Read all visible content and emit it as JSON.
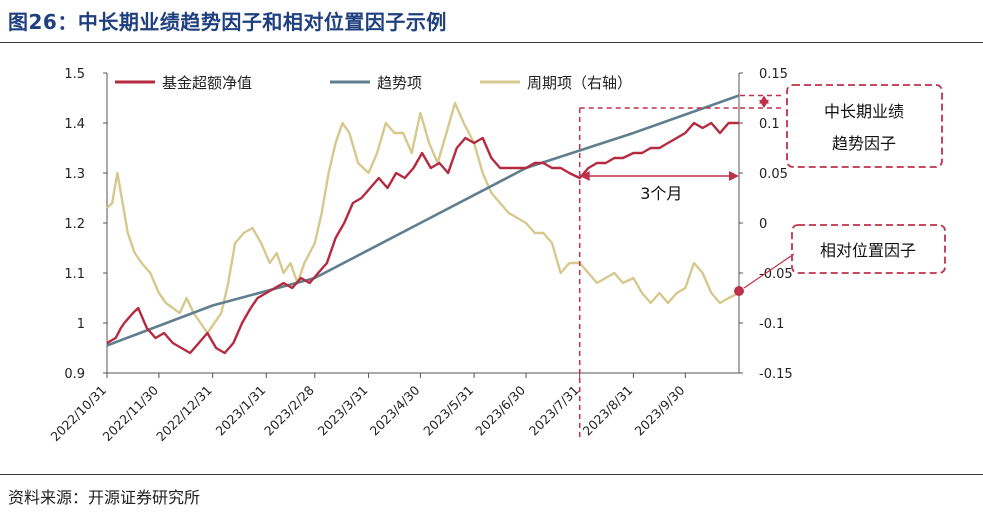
{
  "title": "图26：中长期业绩趋势因子和相对位置因子示例",
  "source": "资料来源：开源证券研究所",
  "colors": {
    "excess": "#B52A40",
    "trend": "#5F7F8F",
    "cycle": "#D7C88E",
    "accent": "#C0304A",
    "title": "#1F3F7F"
  },
  "chart_data": {
    "type": "line",
    "x_labels": [
      "2022/10/31",
      "2022/11/30",
      "2022/12/31",
      "2023/1/31",
      "2023/2/28",
      "2023/3/31",
      "2023/4/30",
      "2023/5/31",
      "2023/6/30",
      "2023/7/31",
      "2023/8/31",
      "2023/9/30"
    ],
    "x_range": [
      "2022/10/31",
      "2023/10/31"
    ],
    "y_left_ticks": [
      "0.9",
      "1",
      "1.1",
      "1.2",
      "1.3",
      "1.4",
      "1.5"
    ],
    "y_left_range": [
      0.9,
      1.5
    ],
    "y_right_ticks": [
      "-0.15",
      "-0.1",
      "-0.05",
      "0",
      "0.05",
      "0.1",
      "0.15"
    ],
    "y_right_range": [
      -0.15,
      0.15
    ],
    "legend": [
      "基金超额净值",
      "趋势项",
      "周期项（右轴）"
    ],
    "series": [
      {
        "name": "基金超额净值",
        "axis": "left",
        "points": [
          [
            "2022/10/31",
            0.96
          ],
          [
            "2022/11/5",
            0.97
          ],
          [
            "2022/11/8",
            0.99
          ],
          [
            "2022/11/10",
            1.0
          ],
          [
            "2022/11/15",
            1.02
          ],
          [
            "2022/11/18",
            1.03
          ],
          [
            "2022/11/23",
            0.99
          ],
          [
            "2022/11/28",
            0.97
          ],
          [
            "2022/12/3",
            0.98
          ],
          [
            "2022/12/8",
            0.96
          ],
          [
            "2022/12/13",
            0.95
          ],
          [
            "2022/12/18",
            0.94
          ],
          [
            "2022/12/23",
            0.96
          ],
          [
            "2022/12/28",
            0.98
          ],
          [
            "2023/1/2",
            0.95
          ],
          [
            "2023/1/7",
            0.94
          ],
          [
            "2023/1/12",
            0.96
          ],
          [
            "2023/1/17",
            1.0
          ],
          [
            "2023/1/22",
            1.03
          ],
          [
            "2023/1/26",
            1.05
          ],
          [
            "2023/1/31",
            1.06
          ],
          [
            "2023/2/5",
            1.07
          ],
          [
            "2023/2/10",
            1.08
          ],
          [
            "2023/2/15",
            1.07
          ],
          [
            "2023/2/20",
            1.09
          ],
          [
            "2023/2/25",
            1.08
          ],
          [
            "2023/3/2",
            1.1
          ],
          [
            "2023/3/7",
            1.12
          ],
          [
            "2023/3/12",
            1.17
          ],
          [
            "2023/3/17",
            1.2
          ],
          [
            "2023/3/22",
            1.24
          ],
          [
            "2023/3/27",
            1.25
          ],
          [
            "2023/4/1",
            1.27
          ],
          [
            "2023/4/6",
            1.29
          ],
          [
            "2023/4/11",
            1.27
          ],
          [
            "2023/4/16",
            1.3
          ],
          [
            "2023/4/21",
            1.29
          ],
          [
            "2023/4/26",
            1.31
          ],
          [
            "2023/5/1",
            1.34
          ],
          [
            "2023/5/6",
            1.31
          ],
          [
            "2023/5/11",
            1.32
          ],
          [
            "2023/5/16",
            1.3
          ],
          [
            "2023/5/21",
            1.35
          ],
          [
            "2023/5/26",
            1.37
          ],
          [
            "2023/5/31",
            1.36
          ],
          [
            "2023/6/5",
            1.37
          ],
          [
            "2023/6/10",
            1.33
          ],
          [
            "2023/6/15",
            1.31
          ],
          [
            "2023/6/20",
            1.31
          ],
          [
            "2023/6/25",
            1.31
          ],
          [
            "2023/6/30",
            1.31
          ],
          [
            "2023/7/5",
            1.32
          ],
          [
            "2023/7/10",
            1.32
          ],
          [
            "2023/7/15",
            1.31
          ],
          [
            "2023/7/20",
            1.31
          ],
          [
            "2023/7/25",
            1.3
          ],
          [
            "2023/7/31",
            1.29
          ],
          [
            "2023/8/5",
            1.31
          ],
          [
            "2023/8/10",
            1.32
          ],
          [
            "2023/8/15",
            1.32
          ],
          [
            "2023/8/20",
            1.33
          ],
          [
            "2023/8/25",
            1.33
          ],
          [
            "2023/8/31",
            1.34
          ],
          [
            "2023/9/5",
            1.34
          ],
          [
            "2023/9/10",
            1.35
          ],
          [
            "2023/9/15",
            1.35
          ],
          [
            "2023/9/20",
            1.36
          ],
          [
            "2023/9/25",
            1.37
          ],
          [
            "2023/9/30",
            1.38
          ],
          [
            "2023/10/5",
            1.4
          ],
          [
            "2023/10/10",
            1.39
          ],
          [
            "2023/10/15",
            1.4
          ],
          [
            "2023/10/20",
            1.38
          ],
          [
            "2023/10/25",
            1.4
          ],
          [
            "2023/10/31",
            1.4
          ]
        ]
      },
      {
        "name": "趋势项",
        "axis": "left",
        "points": [
          [
            "2022/10/31",
            0.955
          ],
          [
            "2022/12/31",
            1.035
          ],
          [
            "2023/2/28",
            1.09
          ],
          [
            "2023/4/30",
            1.2
          ],
          [
            "2023/6/30",
            1.31
          ],
          [
            "2023/8/31",
            1.38
          ],
          [
            "2023/10/31",
            1.455
          ]
        ]
      },
      {
        "name": "周期项（右轴）",
        "axis": "right",
        "points": [
          [
            "2022/10/31",
            0.015
          ],
          [
            "2022/11/3",
            0.02
          ],
          [
            "2022/11/6",
            0.05
          ],
          [
            "2022/11/9",
            0.02
          ],
          [
            "2022/11/12",
            -0.01
          ],
          [
            "2022/11/16",
            -0.03
          ],
          [
            "2022/11/20",
            -0.04
          ],
          [
            "2022/11/25",
            -0.05
          ],
          [
            "2022/11/30",
            -0.07
          ],
          [
            "2022/12/4",
            -0.08
          ],
          [
            "2022/12/8",
            -0.085
          ],
          [
            "2022/12/12",
            -0.09
          ],
          [
            "2022/12/16",
            -0.075
          ],
          [
            "2022/12/20",
            -0.09
          ],
          [
            "2022/12/24",
            -0.1
          ],
          [
            "2022/12/28",
            -0.11
          ],
          [
            "2023/1/1",
            -0.1
          ],
          [
            "2023/1/5",
            -0.09
          ],
          [
            "2023/1/9",
            -0.06
          ],
          [
            "2023/1/13",
            -0.02
          ],
          [
            "2023/1/18",
            -0.01
          ],
          [
            "2023/1/23",
            -0.005
          ],
          [
            "2023/1/28",
            -0.02
          ],
          [
            "2023/2/2",
            -0.04
          ],
          [
            "2023/2/6",
            -0.03
          ],
          [
            "2023/2/10",
            -0.05
          ],
          [
            "2023/2/14",
            -0.04
          ],
          [
            "2023/2/18",
            -0.06
          ],
          [
            "2023/2/22",
            -0.04
          ],
          [
            "2023/2/28",
            -0.02
          ],
          [
            "2023/3/4",
            0.01
          ],
          [
            "2023/3/8",
            0.05
          ],
          [
            "2023/3/12",
            0.08
          ],
          [
            "2023/3/16",
            0.1
          ],
          [
            "2023/3/20",
            0.09
          ],
          [
            "2023/3/25",
            0.06
          ],
          [
            "2023/3/31",
            0.05
          ],
          [
            "2023/4/5",
            0.07
          ],
          [
            "2023/4/10",
            0.1
          ],
          [
            "2023/4/15",
            0.09
          ],
          [
            "2023/4/20",
            0.09
          ],
          [
            "2023/4/25",
            0.07
          ],
          [
            "2023/4/30",
            0.11
          ],
          [
            "2023/5/5",
            0.08
          ],
          [
            "2023/5/10",
            0.06
          ],
          [
            "2023/5/15",
            0.09
          ],
          [
            "2023/5/20",
            0.12
          ],
          [
            "2023/5/25",
            0.1
          ],
          [
            "2023/5/31",
            0.08
          ],
          [
            "2023/6/5",
            0.05
          ],
          [
            "2023/6/10",
            0.03
          ],
          [
            "2023/6/15",
            0.02
          ],
          [
            "2023/6/20",
            0.01
          ],
          [
            "2023/6/25",
            0.005
          ],
          [
            "2023/6/30",
            0.0
          ],
          [
            "2023/7/5",
            -0.01
          ],
          [
            "2023/7/10",
            -0.01
          ],
          [
            "2023/7/15",
            -0.02
          ],
          [
            "2023/7/20",
            -0.05
          ],
          [
            "2023/7/25",
            -0.04
          ],
          [
            "2023/7/31",
            -0.04
          ],
          [
            "2023/8/5",
            -0.05
          ],
          [
            "2023/8/10",
            -0.06
          ],
          [
            "2023/8/15",
            -0.055
          ],
          [
            "2023/8/20",
            -0.05
          ],
          [
            "2023/8/25",
            -0.06
          ],
          [
            "2023/8/31",
            -0.055
          ],
          [
            "2023/9/5",
            -0.07
          ],
          [
            "2023/9/10",
            -0.08
          ],
          [
            "2023/9/15",
            -0.07
          ],
          [
            "2023/9/20",
            -0.08
          ],
          [
            "2023/9/25",
            -0.07
          ],
          [
            "2023/9/30",
            -0.065
          ],
          [
            "2023/10/5",
            -0.04
          ],
          [
            "2023/10/10",
            -0.05
          ],
          [
            "2023/10/15",
            -0.07
          ],
          [
            "2023/10/20",
            -0.08
          ],
          [
            "2023/10/25",
            -0.075
          ],
          [
            "2023/10/31",
            -0.07
          ]
        ]
      }
    ],
    "annotations": {
      "trend_factor": "中长期业绩\n趋势因子",
      "position_factor": "相对位置因子",
      "span_label": "3个月",
      "span": [
        "2023/7/31",
        "2023/10/31"
      ]
    }
  }
}
